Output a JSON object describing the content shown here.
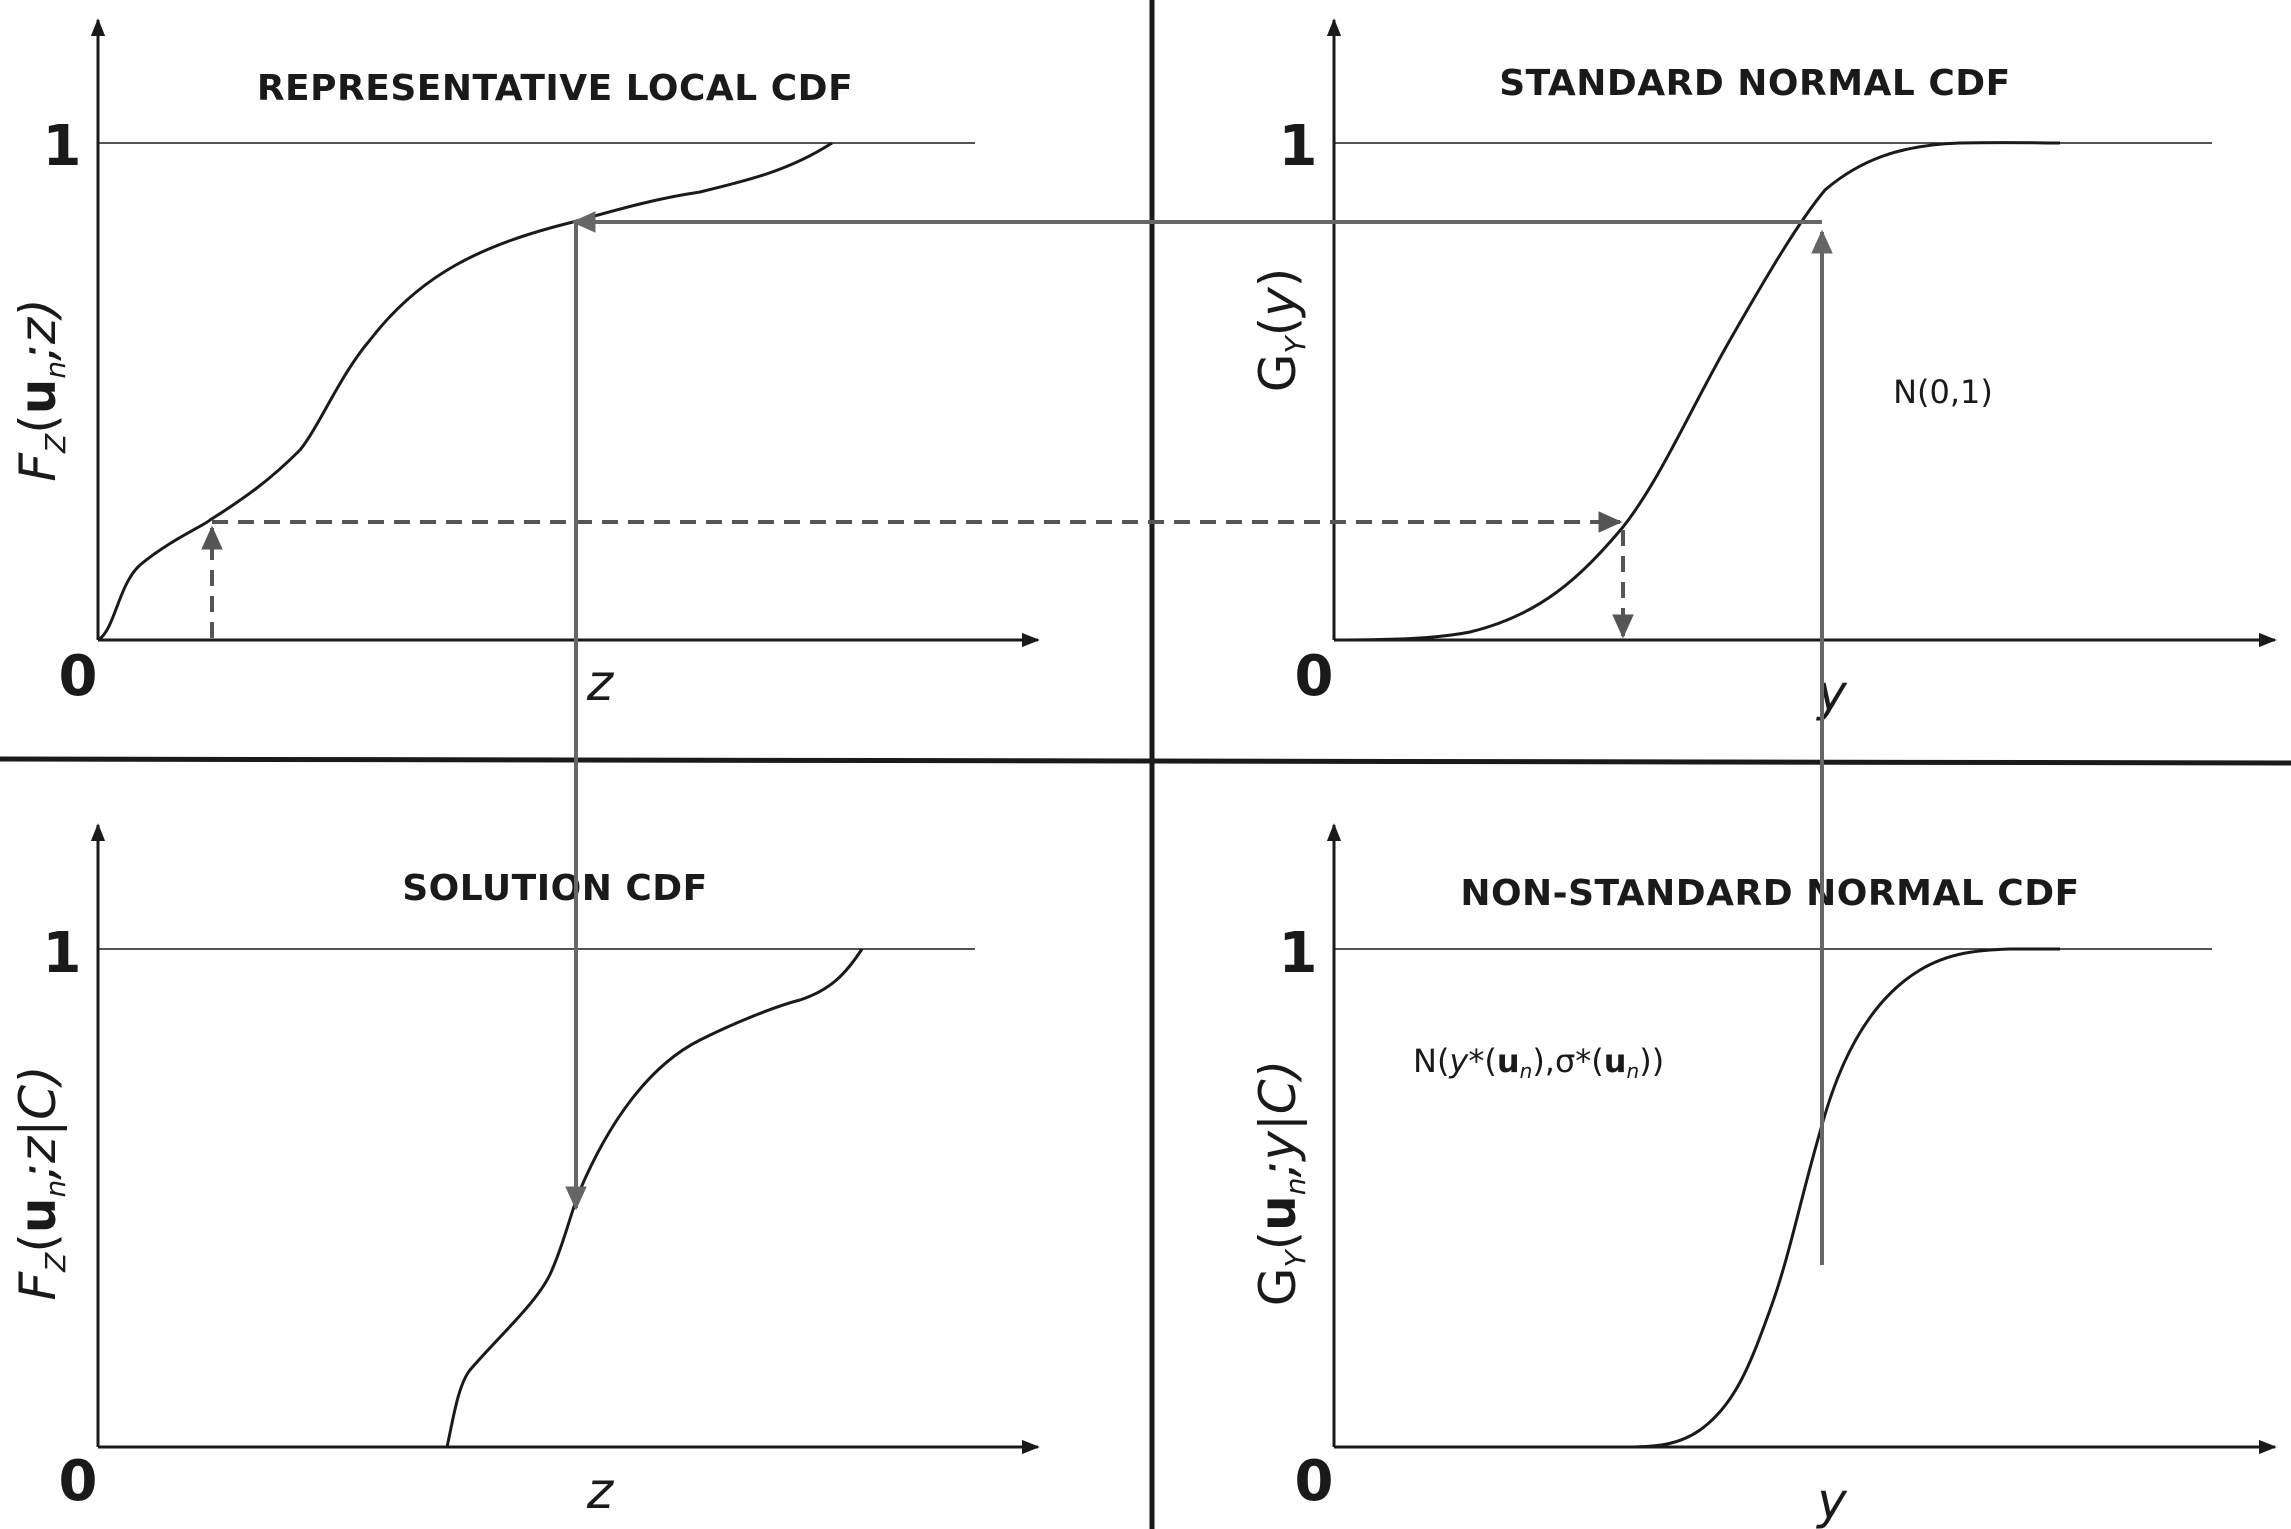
{
  "panels": {
    "top_left": {
      "title": "REPRESENTATIVE LOCAL CDF",
      "tick_zero": "0",
      "tick_one": "1",
      "x_label": "z",
      "y_label": {
        "main": "F",
        "sub1": "Z",
        "open": "(",
        "bold": "u",
        "sub2": "n",
        "rest": ";z)"
      }
    },
    "top_right": {
      "title": "STANDARD NORMAL CDF",
      "tick_zero": "0",
      "tick_one": "1",
      "x_label": "y",
      "y_label": {
        "main": "G",
        "sub1": "Y",
        "open": "(",
        "arg": "y",
        "close": ")"
      },
      "annotation": "N(0,1)"
    },
    "bottom_left": {
      "title": "SOLUTION CDF",
      "tick_zero": "0",
      "tick_one": "1",
      "x_label": "z",
      "y_label": {
        "main": "F",
        "sub1": "Z",
        "open": "(",
        "bold": "u",
        "sub2": "n",
        "rest": ";z|C)"
      }
    },
    "bottom_right": {
      "title": "NON-STANDARD NORMAL CDF",
      "tick_zero": "0",
      "tick_one": "1",
      "x_label": "y",
      "y_label": {
        "main": "G",
        "sub1": "Y",
        "open": "(",
        "bold": "u",
        "sub2": "n",
        "rest": ";y|C)"
      },
      "annotation": {
        "p1": "N(",
        "y": "y",
        "star1": "*(",
        "u1": "u",
        "n1": "n",
        "mid": "),σ*(",
        "u2": "u",
        "n2": "n",
        "end": "))"
      }
    }
  },
  "colors": {
    "ink": "#1a1a1a",
    "guide_arrow": "#666666",
    "dashed_arrow": "#555555"
  }
}
